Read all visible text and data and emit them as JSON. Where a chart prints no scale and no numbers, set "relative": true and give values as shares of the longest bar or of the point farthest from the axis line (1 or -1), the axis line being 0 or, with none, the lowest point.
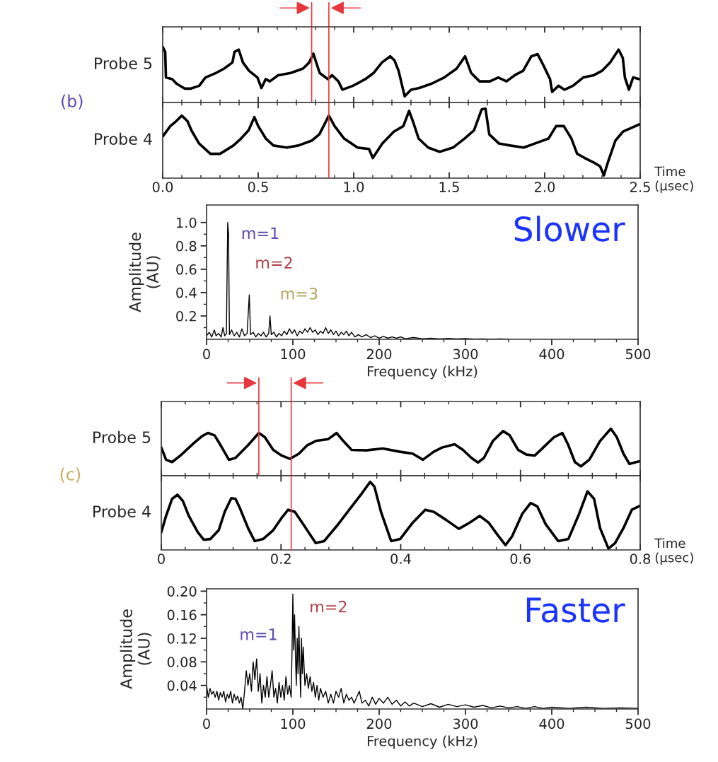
{
  "chart_data": [
    {
      "type": "line",
      "relative": true,
      "ylabel": "Probe 5",
      "annotations": [
        "(b)"
      ],
      "xlim": [
        0,
        2.5
      ],
      "tick_labels": false,
      "xticks": [
        0,
        {
          "value": 0.1,
          "label": null
        },
        {
          "value": 0.2,
          "label": null
        },
        {
          "value": 0.3,
          "label": null
        },
        {
          "value": 0.4,
          "label": null
        },
        0.5,
        {
          "value": 0.6,
          "label": null
        },
        {
          "value": 0.7,
          "label": null
        },
        {
          "value": 0.8,
          "label": null
        },
        {
          "value": 0.9,
          "label": null
        },
        1,
        {
          "value": 1.1,
          "label": null
        },
        {
          "value": 1.2,
          "label": null
        },
        {
          "value": 1.3,
          "label": null
        },
        {
          "value": 1.4,
          "label": null
        },
        1.5,
        {
          "value": 1.6,
          "label": null
        },
        {
          "value": 1.7,
          "label": null
        },
        {
          "value": 1.8,
          "label": null
        },
        {
          "value": 1.9,
          "label": null
        },
        2,
        {
          "value": 2.1,
          "label": null
        },
        {
          "value": 2.2,
          "label": null
        },
        {
          "value": 2.3,
          "label": null
        },
        {
          "value": 2.4,
          "label": null
        },
        2.5
      ],
      "ref_lines": [
        {
          "axis": "x",
          "value": 0.78,
          "color": "#e8383d"
        },
        {
          "axis": "x",
          "value": 0.87,
          "color": "#e8383d"
        }
      ],
      "series": [
        {
          "color": "#000000",
          "x": [
            0,
            0.013,
            0.017,
            0.05,
            0.072,
            0.115,
            0.148,
            0.191,
            0.224,
            0.278,
            0.322,
            0.365,
            0.376,
            0.398,
            0.42,
            0.452,
            0.496,
            0.517,
            0.539,
            0.561,
            0.604,
            0.67,
            0.735,
            0.767,
            0.789,
            0.8,
            0.822,
            0.865,
            0.887,
            0.92,
            0.941,
            0.996,
            1.061,
            1.104,
            1.148,
            1.191,
            1.213,
            1.235,
            1.267,
            1.3,
            1.343,
            1.409,
            1.474,
            1.539,
            1.583,
            1.615,
            1.659,
            1.713,
            1.757,
            1.8,
            1.843,
            1.887,
            1.93,
            1.963,
            1.996,
            2.028,
            2.039,
            2.072,
            2.104,
            2.148,
            2.202,
            2.257,
            2.3,
            2.343,
            2.387,
            2.409,
            2.42,
            2.441,
            2.463,
            2.496
          ],
          "values": [
            1.0,
            0.91,
            0.45,
            0.42,
            0.34,
            0.25,
            0.25,
            0.3,
            0.45,
            0.53,
            0.61,
            0.72,
            0.91,
            0.95,
            0.72,
            0.57,
            0.45,
            0.26,
            0.42,
            0.38,
            0.49,
            0.53,
            0.61,
            0.72,
            0.88,
            0.76,
            0.53,
            0.42,
            0.49,
            0.38,
            0.23,
            0.3,
            0.42,
            0.53,
            0.72,
            0.83,
            0.76,
            0.57,
            0.11,
            0.23,
            0.26,
            0.34,
            0.45,
            0.61,
            0.83,
            0.53,
            0.38,
            0.38,
            0.45,
            0.38,
            0.49,
            0.57,
            0.83,
            0.87,
            0.65,
            0.42,
            0.19,
            0.3,
            0.23,
            0.3,
            0.45,
            0.49,
            0.57,
            0.72,
            0.95,
            0.8,
            0.45,
            0.23,
            0.45,
            0.42
          ]
        }
      ]
    },
    {
      "type": "line",
      "relative": true,
      "ylabel": "Probe 4",
      "xlabel": "Time\n(μsec)",
      "xlim": [
        0,
        2.5
      ],
      "tick_labels": "x",
      "xticks": [
        {
          "value": 0,
          "label": "0.0"
        },
        {
          "value": 0.1,
          "label": null
        },
        {
          "value": 0.2,
          "label": null
        },
        {
          "value": 0.3,
          "label": null
        },
        {
          "value": 0.4,
          "label": null
        },
        {
          "value": 0.5,
          "label": "0.5"
        },
        {
          "value": 0.6,
          "label": null
        },
        {
          "value": 0.7,
          "label": null
        },
        {
          "value": 0.8,
          "label": null
        },
        {
          "value": 0.9,
          "label": null
        },
        {
          "value": 1.0,
          "label": "1.0"
        },
        {
          "value": 1.1,
          "label": null
        },
        {
          "value": 1.2,
          "label": null
        },
        {
          "value": 1.3,
          "label": null
        },
        {
          "value": 1.4,
          "label": null
        },
        {
          "value": 1.5,
          "label": "1.5"
        },
        {
          "value": 1.6,
          "label": null
        },
        {
          "value": 1.7,
          "label": null
        },
        {
          "value": 1.8,
          "label": null
        },
        {
          "value": 1.9,
          "label": null
        },
        {
          "value": 2.0,
          "label": "2.0"
        },
        {
          "value": 2.1,
          "label": null
        },
        {
          "value": 2.2,
          "label": null
        },
        {
          "value": 2.3,
          "label": null
        },
        {
          "value": 2.4,
          "label": null
        },
        {
          "value": 2.5,
          "label": "2.5"
        }
      ],
      "ref_lines": [
        {
          "axis": "x",
          "value": 0.87,
          "color": "#e8383d"
        }
      ],
      "series": [
        {
          "color": "#000000",
          "x": [
            0,
            0.04,
            0.07,
            0.1,
            0.13,
            0.15,
            0.19,
            0.25,
            0.3,
            0.37,
            0.41,
            0.45,
            0.48,
            0.5,
            0.54,
            0.58,
            0.65,
            0.71,
            0.78,
            0.82,
            0.87,
            0.9,
            0.95,
            1.02,
            1.08,
            1.1,
            1.15,
            1.21,
            1.26,
            1.29,
            1.31,
            1.34,
            1.39,
            1.45,
            1.52,
            1.58,
            1.63,
            1.67,
            1.69,
            1.71,
            1.76,
            1.82,
            1.89,
            1.95,
            2.02,
            2.06,
            2.1,
            2.14,
            2.17,
            2.21,
            2.26,
            2.29,
            2.31,
            2.33,
            2.37,
            2.41,
            2.45,
            2.5
          ],
          "values": [
            0.6,
            0.75,
            0.82,
            0.9,
            0.82,
            0.69,
            0.5,
            0.35,
            0.35,
            0.47,
            0.57,
            0.69,
            0.88,
            0.75,
            0.57,
            0.47,
            0.44,
            0.47,
            0.54,
            0.63,
            0.9,
            0.75,
            0.57,
            0.44,
            0.42,
            0.29,
            0.5,
            0.67,
            0.75,
            0.97,
            0.82,
            0.57,
            0.44,
            0.38,
            0.44,
            0.57,
            0.69,
            0.99,
            1.0,
            0.63,
            0.5,
            0.47,
            0.44,
            0.5,
            0.57,
            0.75,
            0.75,
            0.57,
            0.35,
            0.29,
            0.22,
            0.17,
            0.04,
            0.22,
            0.54,
            0.67,
            0.72,
            0.78
          ]
        }
      ]
    },
    {
      "type": "line",
      "xlabel": "Frequency (kHz)",
      "ylabel": "Amplitude\n(AU)",
      "annotations": [
        "Slower",
        "m=1",
        "m=2",
        "m=3"
      ],
      "xlim": [
        0,
        500
      ],
      "ylim": [
        0,
        1.15
      ],
      "xticks": [
        0,
        {
          "value": 25,
          "label": null
        },
        {
          "value": 50,
          "label": null
        },
        {
          "value": 75,
          "label": null
        },
        100,
        {
          "value": 125,
          "label": null
        },
        {
          "value": 150,
          "label": null
        },
        {
          "value": 175,
          "label": null
        },
        200,
        {
          "value": 225,
          "label": null
        },
        {
          "value": 250,
          "label": null
        },
        {
          "value": 275,
          "label": null
        },
        300,
        {
          "value": 325,
          "label": null
        },
        {
          "value": 350,
          "label": null
        },
        {
          "value": 375,
          "label": null
        },
        400,
        {
          "value": 425,
          "label": null
        },
        {
          "value": 450,
          "label": null
        },
        {
          "value": 475,
          "label": null
        },
        500
      ],
      "yticks": [
        {
          "value": 0.1,
          "label": null
        },
        0.2,
        {
          "value": 0.3,
          "label": null
        },
        0.4,
        {
          "value": 0.5,
          "label": null
        },
        0.6,
        {
          "value": 0.7,
          "label": null
        },
        0.8,
        {
          "value": 0.9,
          "label": null
        },
        {
          "value": 1.0,
          "label": "1.0"
        }
      ],
      "series": [
        {
          "color": "#000000",
          "x": [
            0,
            3,
            6,
            9,
            11,
            14,
            17,
            19,
            21,
            23,
            24.5,
            25.5,
            26.5,
            29,
            32,
            35,
            38,
            41,
            44,
            47,
            49.5,
            51,
            54,
            57,
            60,
            63,
            66,
            69,
            72,
            73.5,
            75,
            78,
            81,
            84,
            87,
            90,
            93,
            96,
            99,
            102,
            105,
            108,
            111,
            114,
            117,
            120,
            123,
            126,
            129,
            132,
            135,
            138,
            141,
            144,
            147,
            150,
            153,
            156,
            159,
            162,
            165,
            168,
            172,
            176,
            180,
            185,
            190,
            195,
            200,
            205,
            210,
            215,
            220,
            225,
            230,
            240,
            250,
            260,
            270,
            280,
            290,
            300,
            310,
            320,
            330,
            340,
            350
          ],
          "values": [
            0.03,
            0.06,
            0.02,
            0.08,
            0.03,
            0.05,
            0.02,
            0.1,
            0.03,
            0.05,
            1.0,
            0.9,
            0.04,
            0.08,
            0.03,
            0.06,
            0.02,
            0.09,
            0.03,
            0.05,
            0.38,
            0.04,
            0.06,
            0.02,
            0.05,
            0.03,
            0.06,
            0.02,
            0.05,
            0.2,
            0.04,
            0.06,
            0.02,
            0.05,
            0.03,
            0.07,
            0.04,
            0.09,
            0.05,
            0.08,
            0.03,
            0.07,
            0.05,
            0.09,
            0.06,
            0.1,
            0.06,
            0.08,
            0.04,
            0.07,
            0.05,
            0.1,
            0.05,
            0.08,
            0.04,
            0.07,
            0.03,
            0.06,
            0.04,
            0.07,
            0.03,
            0.06,
            0.02,
            0.04,
            0.02,
            0.04,
            0.015,
            0.03,
            0.01,
            0.025,
            0.01,
            0.02,
            0.01,
            0.02,
            0.005,
            0.015,
            0.005,
            0.01,
            0.003,
            0.008,
            0.003,
            0.006,
            0.002,
            0.004,
            0.001,
            0.004,
            0.001
          ]
        }
      ]
    },
    {
      "type": "line",
      "relative": true,
      "ylabel": "Probe 5",
      "annotations": [
        "(c)"
      ],
      "xlim": [
        0,
        0.8
      ],
      "tick_labels": false,
      "xticks": [
        0,
        {
          "value": 0.04,
          "label": null
        },
        {
          "value": 0.08,
          "label": null
        },
        {
          "value": 0.12,
          "label": null
        },
        {
          "value": 0.16,
          "label": null
        },
        0.2,
        {
          "value": 0.24,
          "label": null
        },
        {
          "value": 0.28,
          "label": null
        },
        {
          "value": 0.32,
          "label": null
        },
        {
          "value": 0.36,
          "label": null
        },
        0.4,
        {
          "value": 0.44,
          "label": null
        },
        {
          "value": 0.48,
          "label": null
        },
        {
          "value": 0.52,
          "label": null
        },
        {
          "value": 0.56,
          "label": null
        },
        0.6,
        {
          "value": 0.64,
          "label": null
        },
        {
          "value": 0.68,
          "label": null
        },
        {
          "value": 0.72,
          "label": null
        },
        {
          "value": 0.76,
          "label": null
        },
        0.8
      ],
      "ref_lines": [
        {
          "axis": "x",
          "value": 0.163,
          "color": "#e8383d"
        },
        {
          "axis": "x",
          "value": 0.217,
          "color": "#e8383d"
        }
      ],
      "series": [
        {
          "color": "#000000",
          "x": [
            0,
            0.008,
            0.018,
            0.032,
            0.054,
            0.068,
            0.078,
            0.089,
            0.099,
            0.113,
            0.124,
            0.145,
            0.163,
            0.173,
            0.187,
            0.201,
            0.215,
            0.23,
            0.244,
            0.258,
            0.279,
            0.293,
            0.304,
            0.318,
            0.342,
            0.37,
            0.399,
            0.42,
            0.437,
            0.455,
            0.469,
            0.49,
            0.504,
            0.518,
            0.529,
            0.539,
            0.554,
            0.571,
            0.582,
            0.596,
            0.61,
            0.624,
            0.638,
            0.656,
            0.67,
            0.68,
            0.691,
            0.701,
            0.715,
            0.733,
            0.751,
            0.761,
            0.772,
            0.782,
            0.793,
            0.8
          ],
          "values": [
            0.6,
            0.34,
            0.29,
            0.43,
            0.69,
            0.84,
            0.91,
            0.86,
            0.65,
            0.34,
            0.38,
            0.65,
            0.91,
            0.82,
            0.55,
            0.43,
            0.36,
            0.47,
            0.65,
            0.74,
            0.78,
            0.91,
            0.74,
            0.55,
            0.54,
            0.58,
            0.51,
            0.47,
            0.34,
            0.51,
            0.6,
            0.67,
            0.55,
            0.38,
            0.28,
            0.38,
            0.74,
            0.95,
            0.86,
            0.55,
            0.45,
            0.43,
            0.6,
            0.82,
            0.91,
            0.65,
            0.29,
            0.2,
            0.34,
            0.74,
            1.0,
            0.82,
            0.47,
            0.25,
            0.29,
            0.31
          ]
        }
      ]
    },
    {
      "type": "line",
      "relative": true,
      "ylabel": "Probe 4",
      "xlabel": "Time\n(μsec)",
      "xlim": [
        0,
        0.8
      ],
      "tick_labels": "x",
      "xticks": [
        0,
        {
          "value": 0.04,
          "label": null
        },
        {
          "value": 0.08,
          "label": null
        },
        {
          "value": 0.12,
          "label": null
        },
        {
          "value": 0.16,
          "label": null
        },
        0.2,
        {
          "value": 0.24,
          "label": null
        },
        {
          "value": 0.28,
          "label": null
        },
        {
          "value": 0.32,
          "label": null
        },
        {
          "value": 0.36,
          "label": null
        },
        0.4,
        {
          "value": 0.44,
          "label": null
        },
        {
          "value": 0.48,
          "label": null
        },
        {
          "value": 0.52,
          "label": null
        },
        {
          "value": 0.56,
          "label": null
        },
        0.6,
        {
          "value": 0.64,
          "label": null
        },
        {
          "value": 0.68,
          "label": null
        },
        {
          "value": 0.72,
          "label": null
        },
        {
          "value": 0.76,
          "label": null
        },
        0.8
      ],
      "ref_lines": [
        {
          "axis": "x",
          "value": 0.217,
          "color": "#e8383d"
        }
      ],
      "series": [
        {
          "color": "#000000",
          "x": [
            0,
            0.008,
            0.018,
            0.027,
            0.036,
            0.046,
            0.061,
            0.071,
            0.082,
            0.096,
            0.106,
            0.117,
            0.124,
            0.131,
            0.145,
            0.156,
            0.17,
            0.187,
            0.201,
            0.212,
            0.223,
            0.237,
            0.258,
            0.272,
            0.293,
            0.314,
            0.335,
            0.349,
            0.356,
            0.367,
            0.384,
            0.399,
            0.42,
            0.441,
            0.455,
            0.476,
            0.497,
            0.515,
            0.532,
            0.547,
            0.561,
            0.575,
            0.586,
            0.603,
            0.617,
            0.628,
            0.642,
            0.663,
            0.68,
            0.698,
            0.712,
            0.723,
            0.733,
            0.747,
            0.758,
            0.772,
            0.786,
            0.8
          ],
          "values": [
            0.26,
            0.5,
            0.75,
            0.81,
            0.72,
            0.5,
            0.26,
            0.15,
            0.16,
            0.29,
            0.56,
            0.76,
            0.75,
            0.62,
            0.32,
            0.13,
            0.16,
            0.29,
            0.47,
            0.59,
            0.56,
            0.38,
            0.1,
            0.13,
            0.35,
            0.59,
            0.83,
            1.0,
            0.93,
            0.56,
            0.13,
            0.16,
            0.4,
            0.59,
            0.56,
            0.44,
            0.31,
            0.4,
            0.5,
            0.4,
            0.23,
            0.07,
            0.2,
            0.53,
            0.69,
            0.64,
            0.38,
            0.13,
            0.16,
            0.53,
            0.86,
            0.75,
            0.32,
            0.02,
            0.1,
            0.32,
            0.59,
            0.65
          ]
        }
      ]
    },
    {
      "type": "line",
      "xlabel": "Frequency (kHz)",
      "ylabel": "Amplitude\n(AU)",
      "annotations": [
        "Faster",
        "m=1",
        "m=2"
      ],
      "xlim": [
        0,
        500
      ],
      "ylim": [
        0,
        0.204
      ],
      "xticks": [
        0,
        {
          "value": 25,
          "label": null
        },
        {
          "value": 50,
          "label": null
        },
        {
          "value": 75,
          "label": null
        },
        100,
        {
          "value": 125,
          "label": null
        },
        {
          "value": 150,
          "label": null
        },
        {
          "value": 175,
          "label": null
        },
        200,
        {
          "value": 225,
          "label": null
        },
        {
          "value": 250,
          "label": null
        },
        {
          "value": 275,
          "label": null
        },
        300,
        {
          "value": 325,
          "label": null
        },
        {
          "value": 350,
          "label": null
        },
        {
          "value": 375,
          "label": null
        },
        400,
        {
          "value": 425,
          "label": null
        },
        {
          "value": 450,
          "label": null
        },
        {
          "value": 475,
          "label": null
        },
        500
      ],
      "yticks": [
        {
          "value": 0.02,
          "label": null
        },
        0.04,
        {
          "value": 0.06,
          "label": null
        },
        0.08,
        {
          "value": 0.1,
          "label": null
        },
        0.12,
        {
          "value": 0.14,
          "label": null
        },
        0.16,
        {
          "value": 0.18,
          "label": null
        },
        {
          "value": 0.2,
          "label": "0.20"
        }
      ],
      "series": [
        {
          "color": "#000000",
          "x": [
            0,
            2,
            4,
            6,
            8,
            10,
            12,
            14,
            16,
            18,
            20,
            22,
            24,
            26,
            28,
            30,
            32,
            34,
            36,
            38,
            40,
            42,
            44,
            46,
            48,
            50,
            52,
            54,
            56,
            58,
            60,
            62,
            64,
            66,
            68,
            70,
            72,
            74,
            76,
            78,
            80,
            82,
            84,
            86,
            88,
            90,
            92,
            94,
            96,
            98,
            99,
            100,
            101,
            102,
            103,
            104,
            105,
            106,
            107,
            108,
            109,
            110,
            111,
            112,
            114,
            116,
            118,
            120,
            122,
            124,
            126,
            128,
            130,
            132,
            135,
            138,
            141,
            144,
            147,
            150,
            153,
            156,
            159,
            162,
            165,
            168,
            171,
            174,
            177,
            180,
            184,
            188,
            192,
            196,
            200,
            205,
            210,
            215,
            220,
            225,
            230,
            235,
            240,
            250,
            260,
            270,
            280,
            290,
            300,
            310,
            320,
            330,
            340,
            350,
            360,
            370,
            380,
            390,
            400,
            420,
            440,
            460,
            480,
            500
          ],
          "values": [
            0.04,
            0.02,
            0.035,
            0.025,
            0.03,
            0.02,
            0.03,
            0.015,
            0.028,
            0.02,
            0.03,
            0.012,
            0.025,
            0.018,
            0.03,
            0.01,
            0.025,
            0.015,
            0.022,
            0.01,
            0.02,
            0.0,
            0.03,
            0.065,
            0.04,
            0.06,
            0.03,
            0.08,
            0.05,
            0.085,
            0.03,
            0.06,
            0.01,
            0.04,
            0.02,
            0.055,
            0.02,
            0.04,
            0.065,
            0.02,
            0.035,
            0.01,
            0.045,
            0.02,
            0.04,
            0.015,
            0.055,
            0.025,
            0.04,
            0.02,
            0.095,
            0.195,
            0.1,
            0.16,
            0.09,
            0.04,
            0.12,
            0.06,
            0.14,
            0.08,
            0.02,
            0.12,
            0.06,
            0.105,
            0.04,
            0.06,
            0.035,
            0.055,
            0.03,
            0.045,
            0.02,
            0.04,
            0.015,
            0.035,
            0.02,
            0.03,
            0.01,
            0.025,
            0.01,
            0.03,
            0.02,
            0.035,
            0.01,
            0.025,
            0.015,
            0.02,
            0.01,
            0.02,
            0.03,
            0.01,
            0.015,
            0.005,
            0.02,
            0.008,
            0.018,
            0.01,
            0.02,
            0.008,
            0.015,
            0.005,
            0.012,
            0.005,
            0.01,
            0.004,
            0.009,
            0.003,
            0.008,
            0.004,
            0.007,
            0.003,
            0.006,
            0.002,
            0.005,
            0.002,
            0.004,
            0.001,
            0.004,
            0.001,
            0.003,
            0.001,
            0.003,
            0.001,
            0.002,
            0.001
          ]
        }
      ]
    }
  ]
}
